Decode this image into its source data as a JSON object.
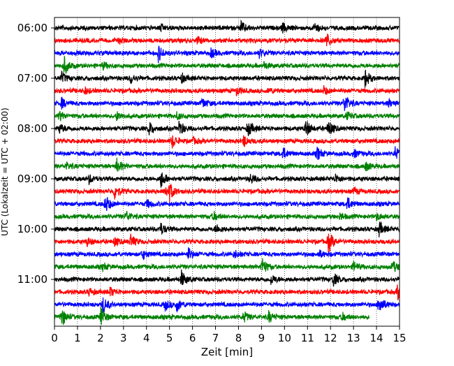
{
  "chart_data": {
    "type": "line",
    "xlabel": "Zeit  [min]",
    "ylabel": "UTC (Lokalzeit = UTC + 02:00)",
    "xlim": [
      0,
      15
    ],
    "x_ticks": [
      "0",
      "1",
      "2",
      "3",
      "4",
      "5",
      "6",
      "7",
      "8",
      "9",
      "10",
      "11",
      "12",
      "13",
      "14",
      "15"
    ],
    "y_ticks": [
      "06:00",
      "07:00",
      "08:00",
      "09:00",
      "10:00",
      "11:00"
    ],
    "grid": "vertical dotted at each minute",
    "trace_interval_minutes": 15,
    "trace_colors": [
      "#000000",
      "#ff0000",
      "#0000ff",
      "#008000"
    ],
    "series": [
      {
        "start": "06:00",
        "color": "#000000",
        "events": [
          [
            8.1,
            9
          ],
          [
            9.9,
            7
          ],
          [
            11.3,
            8
          ],
          [
            4.6,
            5
          ]
        ]
      },
      {
        "start": "06:15",
        "color": "#ff0000",
        "events": [
          [
            11.8,
            12
          ],
          [
            6.2,
            5
          ],
          [
            2.8,
            4
          ]
        ]
      },
      {
        "start": "06:30",
        "color": "#0000ff",
        "events": [
          [
            4.5,
            12
          ],
          [
            6.8,
            7
          ],
          [
            8.9,
            6
          ]
        ]
      },
      {
        "start": "06:45",
        "color": "#008000",
        "events": [
          [
            0.4,
            14
          ],
          [
            2.1,
            5
          ],
          [
            9.1,
            5
          ]
        ]
      },
      {
        "start": "07:00",
        "color": "#000000",
        "events": [
          [
            0.3,
            8
          ],
          [
            3.3,
            7
          ],
          [
            5.5,
            7
          ],
          [
            13.5,
            12
          ]
        ]
      },
      {
        "start": "07:15",
        "color": "#ff0000",
        "events": [
          [
            1.3,
            5
          ],
          [
            7.9,
            6
          ],
          [
            9.3,
            4
          ],
          [
            11.7,
            6
          ]
        ]
      },
      {
        "start": "07:30",
        "color": "#0000ff",
        "events": [
          [
            0.3,
            7
          ],
          [
            6.4,
            8
          ],
          [
            12.6,
            14
          ],
          [
            14.5,
            5
          ]
        ]
      },
      {
        "start": "07:45",
        "color": "#008000",
        "events": [
          [
            0.2,
            7
          ],
          [
            2.7,
            6
          ],
          [
            5.3,
            5
          ],
          [
            12.7,
            5
          ]
        ]
      },
      {
        "start": "08:00",
        "color": "#000000",
        "events": [
          [
            0.2,
            7
          ],
          [
            4.1,
            10
          ],
          [
            5.4,
            12
          ],
          [
            8.4,
            12
          ],
          [
            10.9,
            14
          ],
          [
            11.9,
            12
          ]
        ]
      },
      {
        "start": "08:15",
        "color": "#ff0000",
        "events": [
          [
            5.1,
            10
          ],
          [
            8.2,
            9
          ],
          [
            6.0,
            4
          ]
        ]
      },
      {
        "start": "08:30",
        "color": "#0000ff",
        "events": [
          [
            9.9,
            9
          ],
          [
            11.4,
            10
          ],
          [
            13.0,
            6
          ],
          [
            14.8,
            9
          ]
        ]
      },
      {
        "start": "08:45",
        "color": "#008000",
        "events": [
          [
            2.7,
            11
          ],
          [
            13.5,
            7
          ],
          [
            0.5,
            5
          ]
        ]
      },
      {
        "start": "09:00",
        "color": "#000000",
        "events": [
          [
            4.6,
            14
          ],
          [
            1.5,
            6
          ],
          [
            8.5,
            7
          ],
          [
            12.2,
            6
          ]
        ]
      },
      {
        "start": "09:15",
        "color": "#ff0000",
        "events": [
          [
            2.6,
            12
          ],
          [
            4.8,
            8
          ],
          [
            5.0,
            10
          ],
          [
            13.0,
            5
          ]
        ]
      },
      {
        "start": "09:30",
        "color": "#0000ff",
        "events": [
          [
            2.2,
            14
          ],
          [
            4.0,
            6
          ],
          [
            12.7,
            10
          ]
        ]
      },
      {
        "start": "09:45",
        "color": "#008000",
        "events": [
          [
            3.1,
            8
          ],
          [
            6.9,
            7
          ],
          [
            12.4,
            5
          ],
          [
            14.0,
            5
          ]
        ]
      },
      {
        "start": "10:00",
        "color": "#000000",
        "events": [
          [
            4.6,
            9
          ],
          [
            7.0,
            7
          ],
          [
            14.1,
            11
          ]
        ]
      },
      {
        "start": "10:15",
        "color": "#ff0000",
        "events": [
          [
            1.4,
            6
          ],
          [
            2.6,
            6
          ],
          [
            3.3,
            10
          ],
          [
            11.9,
            16
          ]
        ]
      },
      {
        "start": "10:30",
        "color": "#0000ff",
        "events": [
          [
            3.8,
            8
          ],
          [
            5.8,
            9
          ],
          [
            7.8,
            6
          ],
          [
            11.5,
            5
          ]
        ]
      },
      {
        "start": "10:45",
        "color": "#008000",
        "events": [
          [
            9.0,
            14
          ],
          [
            13.0,
            7
          ],
          [
            14.7,
            8
          ],
          [
            2.1,
            5
          ]
        ]
      },
      {
        "start": "11:00",
        "color": "#000000",
        "events": [
          [
            5.5,
            13
          ],
          [
            9.4,
            7
          ],
          [
            12.1,
            10
          ]
        ]
      },
      {
        "start": "11:15",
        "color": "#ff0000",
        "events": [
          [
            1.5,
            5
          ],
          [
            2.4,
            7
          ],
          [
            14.9,
            12
          ]
        ]
      },
      {
        "start": "11:30",
        "color": "#0000ff",
        "events": [
          [
            2.1,
            12
          ],
          [
            4.8,
            8
          ],
          [
            5.3,
            10
          ],
          [
            14.1,
            15
          ]
        ]
      },
      {
        "start": "11:45",
        "color": "#008000",
        "events": [
          [
            0.3,
            14
          ],
          [
            2.0,
            14
          ],
          [
            8.2,
            9
          ],
          [
            9.3,
            8
          ],
          [
            12.5,
            6
          ]
        ],
        "end": 13.7
      }
    ]
  }
}
